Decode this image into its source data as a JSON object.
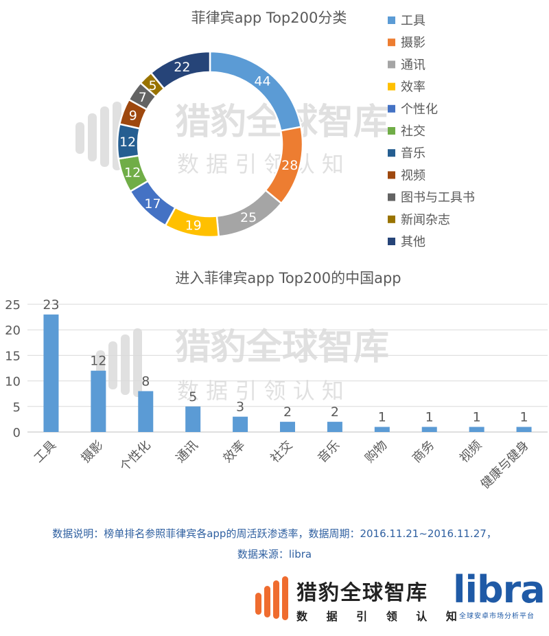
{
  "watermark": {
    "name": "猎豹全球智库",
    "tagline": "数 据 引 领 认 知"
  },
  "chart_data": [
    {
      "type": "pie",
      "title": "菲律宾app Top200分类",
      "categories": [
        "工具",
        "摄影",
        "通讯",
        "效率",
        "个性化",
        "社交",
        "音乐",
        "视频",
        "图书与工具书",
        "新闻杂志",
        "其他"
      ],
      "values": [
        44,
        28,
        25,
        19,
        17,
        12,
        12,
        9,
        7,
        5,
        22
      ],
      "colors": [
        "#5b9bd5",
        "#ed7d31",
        "#a5a5a5",
        "#ffc000",
        "#4472c4",
        "#70ad47",
        "#255e91",
        "#9e480e",
        "#636363",
        "#997300",
        "#264478"
      ],
      "legend": "right"
    },
    {
      "type": "bar",
      "title": "进入菲律宾app Top200的中国app",
      "categories": [
        "工具",
        "摄影",
        "个性化",
        "通讯",
        "效率",
        "社交",
        "音乐",
        "购物",
        "商务",
        "视频",
        "健康与健身"
      ],
      "values": [
        23,
        12,
        8,
        5,
        3,
        2,
        2,
        1,
        1,
        1,
        1
      ],
      "color": "#5b9bd5",
      "yticks": [
        "0",
        "5",
        "10",
        "15",
        "20",
        "25"
      ],
      "ylim": [
        0,
        25
      ],
      "grid": true
    }
  ],
  "footer": {
    "note_line1": "数据说明：榜单排名参照菲律宾各app的周活跃渗透率，数据周期：2016.11.21~2016.11.27，",
    "note_line2": "数据来源：libra",
    "brand_name": "猎豹全球智库",
    "brand_tagline": "数 据 引 领 认 知",
    "libra_word": "libra",
    "libra_sub": "全球安卓市场分析平台",
    "brand_color": "#1f5aa6"
  }
}
